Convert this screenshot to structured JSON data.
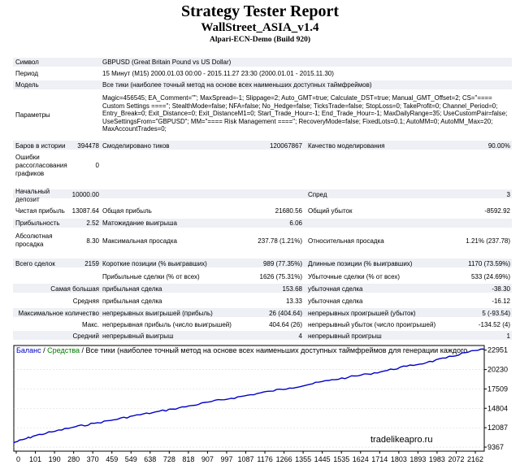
{
  "header": {
    "title": "Strategy Tester Report",
    "subtitle": "WallStreet_ASIA_v1.4",
    "broker": "Alpari-ECN-Demo (Build 920)"
  },
  "info": {
    "symbol_label": "Символ",
    "symbol_value": "GBPUSD (Great Britain Pound vs US Dollar)",
    "period_label": "Период",
    "period_value": "15 Минут (M15) 2000.01.03 00:00 - 2015.11.27 23:30 (2000.01.01 - 2015.11.30)",
    "model_label": "Модель",
    "model_value": "Все тики (наиболее точный метод на основе всех наименьших доступных таймфреймов)",
    "params_label": "Параметры",
    "params_value": "Magic=456545; EA_Comment=\"\"; MaxSpread=-1; Slippage=2; Auto_GMT=true; Calculate_DST=true; Manual_GMT_Offset=2; CS=\"==== Custom Settings ====\"; StealthMode=false; NFA=false; No_Hedge=false; TicksTrade=false; StopLoss=0; TakeProfit=0; Channel_Period=0; Entry_Break=0; Exit_Distance=0; Exit_DistanceM1=0; Start_Trade_Hour=-1; End_Trade_Hour=-1; MaxDailyRange=35; UseCustomPair=false; UseSettingsFrom=\"GBPUSD\"; MM=\"==== Risk Management ====\"; RecoveryMode=false; FixedLots=0.1; AutoMM=0; AutoMM_Max=20; MaxAccountTrades=0;"
  },
  "stats": {
    "bars_label": "Баров в истории",
    "bars_value": "394478",
    "ticks_label": "Смоделировано тиков",
    "ticks_value": "120067867",
    "quality_label": "Качество моделирования",
    "quality_value": "90.00%",
    "errors_label": "Ошибки рассогласования графиков",
    "errors_value": "0",
    "deposit_label": "Начальный депозит",
    "deposit_value": "10000.00",
    "spread_label": "Спред",
    "spread_value": "3",
    "net_label": "Чистая прибыль",
    "net_value": "13087.64",
    "gross_profit_label": "Общая прибыль",
    "gross_profit_value": "21680.56",
    "gross_loss_label": "Общий убыток",
    "gross_loss_value": "-8592.92",
    "pf_label": "Прибыльность",
    "pf_value": "2.52",
    "payoff_label": "Матожидание выигрыша",
    "payoff_value": "6.06",
    "abs_dd_label": "Абсолютная просадка",
    "abs_dd_value": "8.30",
    "max_dd_label": "Максимальная просадка",
    "max_dd_value": "237.78 (1.21%)",
    "rel_dd_label": "Относительная просадка",
    "rel_dd_value": "1.21% (237.78)",
    "trades_label": "Всего сделок",
    "trades_value": "2159",
    "short_label": "Короткие позиции (% выигравших)",
    "short_value": "989 (77.35%)",
    "long_label": "Длинные позиции (% выигравших)",
    "long_value": "1170 (73.59%)",
    "profit_trades_label": "Прибыльные сделки (% от всех)",
    "profit_trades_value": "1626 (75.31%)",
    "loss_trades_label": "Убыточные сделки (% от всех)",
    "loss_trades_value": "533 (24.69%)",
    "largest_label": "Самая большая",
    "largest_profit_label": "прибыльная сделка",
    "largest_profit_value": "153.68",
    "largest_loss_label": "убыточная сделка",
    "largest_loss_value": "-38.30",
    "average_label": "Средняя",
    "average_profit_label": "прибыльная сделка",
    "average_profit_value": "13.33",
    "average_loss_label": "убыточная сделка",
    "average_loss_value": "-16.12",
    "max_count_label": "Максимальное количество",
    "max_cons_wins_label": "непрерывных выигрышей (прибыль)",
    "max_cons_wins_value": "26 (404.64)",
    "max_cons_losses_label": "непрерывных проигрышей (убыток)",
    "max_cons_losses_value": "5 (-93.54)",
    "max_label": "Макс.",
    "max_cons_profit_label": "непрерывная прибыль (число выигрышей)",
    "max_cons_profit_value": "404.64 (26)",
    "max_cons_loss_label": "непрерывный убыток (число проигрышей)",
    "max_cons_loss_value": "-134.52 (4)",
    "avg_label": "Средний",
    "avg_cons_wins_label": "непрерывный выигрыш",
    "avg_cons_wins_value": "4",
    "avg_cons_losses_label": "непрерывный проигрыш",
    "avg_cons_losses_value": "1"
  },
  "chart_data": {
    "type": "line",
    "legend": {
      "balance": "Баланс",
      "sep1": " / ",
      "equity": "Средства",
      "sep2": " / ",
      "model": "Все тики (наиболее точный метод на основе всех наименьших доступных таймфреймов для генерации каждого"
    },
    "colors": {
      "balance": "#0000c8",
      "equity": "#008000",
      "frame": "#000000"
    },
    "x_ticks": [
      "0",
      "101",
      "190",
      "280",
      "370",
      "459",
      "549",
      "638",
      "728",
      "818",
      "907",
      "997",
      "1087",
      "1176",
      "1266",
      "1355",
      "1445",
      "1535",
      "1624",
      "1714",
      "1803",
      "1893",
      "1983",
      "2072",
      "2162"
    ],
    "y_ticks": [
      9367,
      12087,
      14804,
      17509,
      20230,
      22951
    ],
    "xlim": [
      0,
      2159
    ],
    "ylim": [
      8800,
      23600
    ],
    "series": [
      {
        "name": "Баланс",
        "x": [
          0,
          50,
          101,
          190,
          280,
          370,
          459,
          549,
          638,
          728,
          818,
          907,
          997,
          1087,
          1176,
          1266,
          1355,
          1445,
          1535,
          1624,
          1714,
          1803,
          1893,
          1983,
          2072,
          2159
        ],
        "values": [
          10000,
          10500,
          11000,
          11600,
          12200,
          12700,
          13200,
          13750,
          14200,
          14700,
          15200,
          15750,
          16200,
          16700,
          17200,
          17650,
          18150,
          18700,
          19150,
          19600,
          20100,
          20700,
          21200,
          21850,
          22600,
          23088
        ]
      }
    ]
  },
  "watermark": "tradelikeapro.ru"
}
